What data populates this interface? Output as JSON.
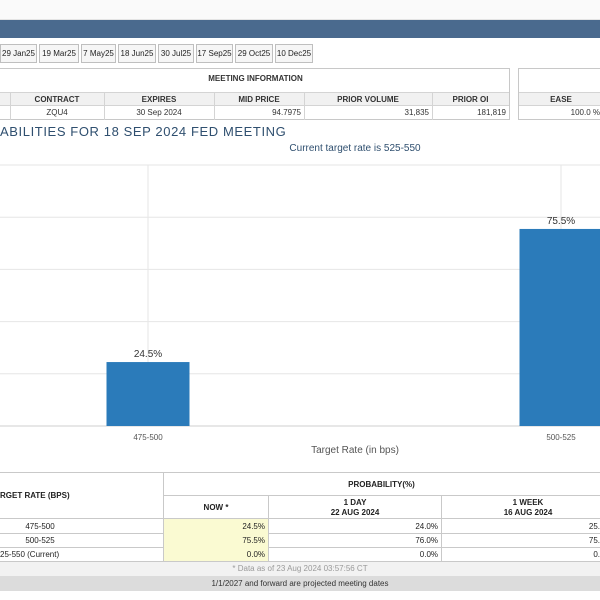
{
  "meeting_tabs": [
    "29 Jan25",
    "19 Mar25",
    "7 May25",
    "18 Jun25",
    "30 Jul25",
    "17 Sep25",
    "29 Oct25",
    "10 Dec25"
  ],
  "meeting_info": {
    "title": "MEETING INFORMATION",
    "headers": {
      "contract": "CONTRACT",
      "expires": "EXPIRES",
      "mid_price": "MID PRICE",
      "prior_volume": "PRIOR VOLUME",
      "prior_oi": "PRIOR OI"
    },
    "values": {
      "contract": "ZQU4",
      "expires": "30 Sep 2024",
      "mid_price": "94.7975",
      "prior_volume": "31,835",
      "prior_oi": "181,819"
    }
  },
  "ease_panel": {
    "header": "EASE",
    "value": "100.0 %"
  },
  "chart_title": "ABILITIES FOR 18 SEP 2024 FED MEETING",
  "chart_subtitle": "Current target rate is 525-550",
  "chart_data": {
    "type": "bar",
    "categories": [
      "475-500",
      "500-525"
    ],
    "values": [
      24.5,
      75.5
    ],
    "value_labels": [
      "24.5%",
      "75.5%"
    ],
    "xlabel": "Target Rate (in bps)",
    "ylabel": "",
    "ylim": [
      0,
      100
    ],
    "grid": true,
    "bar_color": "#2b7bba"
  },
  "prob_table": {
    "target_header": "RGET RATE (BPS)",
    "prob_header": "PROBABILITY(%)",
    "col_now": "NOW *",
    "col_1day_a": "1 DAY",
    "col_1day_b": "22 AUG 2024",
    "col_1week_a": "1 WEEK",
    "col_1week_b": "16 AUG 2024",
    "rows": [
      {
        "rate": "475-500",
        "now": "24.5%",
        "day": "24.0%",
        "week": "25."
      },
      {
        "rate": "500-525",
        "now": "75.5%",
        "day": "76.0%",
        "week": "75."
      },
      {
        "rate": "25-550 (Current)",
        "now": "0.0%",
        "day": "0.0%",
        "week": "0."
      }
    ]
  },
  "footnote": "* Data as of 23 Aug 2024 03:57:56 CT",
  "footer_note": "1/1/2027 and forward are projected meeting dates"
}
